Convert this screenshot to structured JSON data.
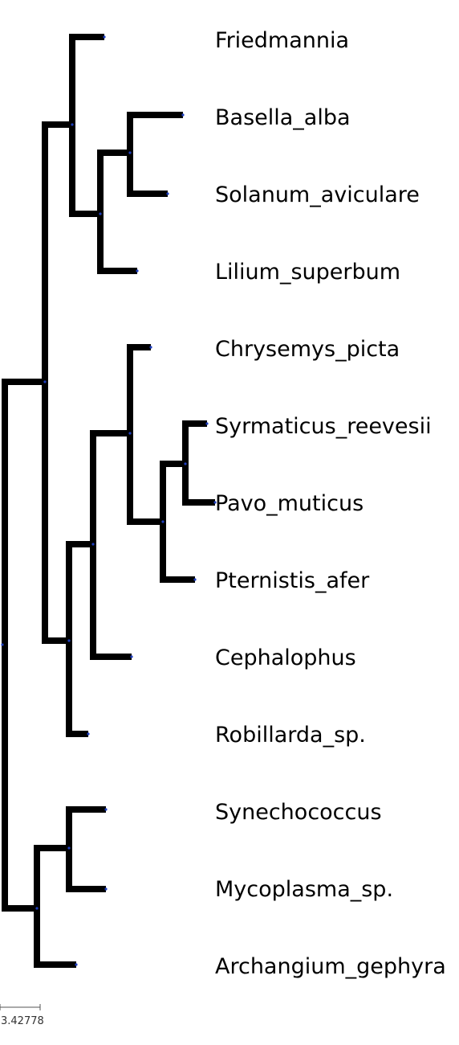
{
  "tree": {
    "newick": "(((Friedmannia,((Basella_alba,Solanum_aviculare),Lilium_superbum)),(((Chrysemys_picta,((Syrmaticus_reevesii,Pavo_muticus),Pternistis_afer)),Cephalophus),Robillarda_sp.)),((Synechococcus,Mycoplasma_sp.),Archangium_gephyra));",
    "taxa": [
      "Friedmannia",
      "Basella_alba",
      "Solanum_aviculare",
      "Lilium_superbum",
      "Chrysemys_picta",
      "Syrmaticus_reevesii",
      "Pavo_muticus",
      "Pternistis_afer",
      "Cephalophus",
      "Robillarda_sp.",
      "Synechococcus",
      "Mycoplasma_sp.",
      "Archangium_gephyra"
    ]
  },
  "scale_bar": {
    "label": "3.42778"
  },
  "colors": {
    "branch": "#000000",
    "node": "#1f3fbf"
  }
}
